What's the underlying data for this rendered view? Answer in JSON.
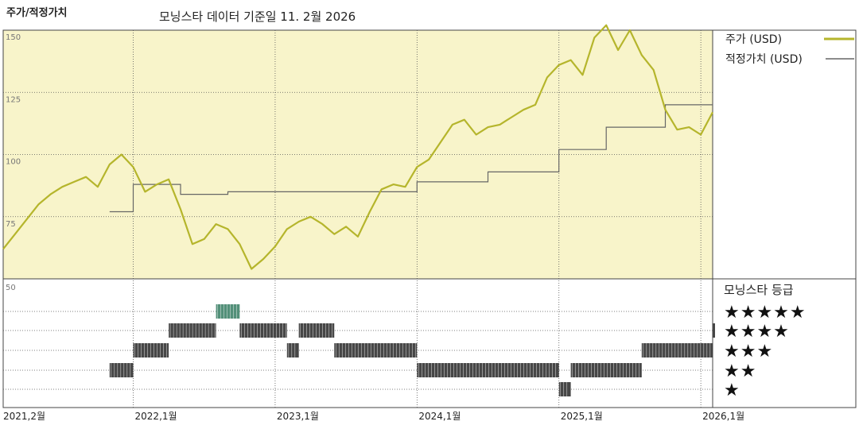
{
  "header": {
    "title": "주가/적정가치",
    "subtitle": "모닝스타 데이터 기준일 11. 2월 2026"
  },
  "chart_data": {
    "type": "line",
    "title": "주가/적정가치",
    "subtitle": "모닝스타 데이터 기준일 11. 2월 2026",
    "x_ticks": [
      "2021,2월",
      "2022,1월",
      "2023,1월",
      "2024,1월",
      "2025,1월",
      "2026,1월"
    ],
    "y_ticks": [
      150,
      125,
      100,
      75,
      50
    ],
    "ylim": [
      50,
      150
    ],
    "grid": true,
    "legend_position": "right",
    "series": [
      {
        "name": "주가 (USD)",
        "color": "#b5b52c",
        "points": [
          [
            "2021-02",
            62
          ],
          [
            "2021-03",
            68
          ],
          [
            "2021-04",
            74
          ],
          [
            "2021-05",
            80
          ],
          [
            "2021-06",
            84
          ],
          [
            "2021-07",
            87
          ],
          [
            "2021-08",
            89
          ],
          [
            "2021-09",
            91
          ],
          [
            "2021-10",
            87
          ],
          [
            "2021-11",
            96
          ],
          [
            "2021-12",
            100
          ],
          [
            "2022-01",
            95
          ],
          [
            "2022-02",
            85
          ],
          [
            "2022-03",
            88
          ],
          [
            "2022-04",
            90
          ],
          [
            "2022-05",
            78
          ],
          [
            "2022-06",
            64
          ],
          [
            "2022-07",
            66
          ],
          [
            "2022-08",
            72
          ],
          [
            "2022-09",
            70
          ],
          [
            "2022-10",
            64
          ],
          [
            "2022-11",
            54
          ],
          [
            "2022-12",
            58
          ],
          [
            "2023-01",
            63
          ],
          [
            "2023-02",
            70
          ],
          [
            "2023-03",
            73
          ],
          [
            "2023-04",
            75
          ],
          [
            "2023-05",
            72
          ],
          [
            "2023-06",
            68
          ],
          [
            "2023-07",
            71
          ],
          [
            "2023-08",
            67
          ],
          [
            "2023-09",
            77
          ],
          [
            "2023-10",
            86
          ],
          [
            "2023-11",
            88
          ],
          [
            "2023-12",
            87
          ],
          [
            "2024-01",
            95
          ],
          [
            "2024-02",
            98
          ],
          [
            "2024-03",
            105
          ],
          [
            "2024-04",
            112
          ],
          [
            "2024-05",
            114
          ],
          [
            "2024-06",
            108
          ],
          [
            "2024-07",
            111
          ],
          [
            "2024-08",
            112
          ],
          [
            "2024-09",
            115
          ],
          [
            "2024-10",
            118
          ],
          [
            "2024-11",
            120
          ],
          [
            "2024-12",
            131
          ],
          [
            "2025-01",
            136
          ],
          [
            "2025-02",
            138
          ],
          [
            "2025-03",
            132
          ],
          [
            "2025-04",
            147
          ],
          [
            "2025-05",
            152
          ],
          [
            "2025-06",
            142
          ],
          [
            "2025-07",
            150
          ],
          [
            "2025-08",
            140
          ],
          [
            "2025-09",
            134
          ],
          [
            "2025-10",
            118
          ],
          [
            "2025-11",
            110
          ],
          [
            "2025-12",
            111
          ],
          [
            "2026-01",
            108
          ],
          [
            "2026-02",
            117
          ]
        ]
      },
      {
        "name": "적정가치 (USD)",
        "color": "#666666",
        "points": [
          [
            "2021-11",
            77
          ],
          [
            "2022-01",
            77
          ],
          [
            "2022-01",
            88
          ],
          [
            "2022-05",
            88
          ],
          [
            "2022-05",
            84
          ],
          [
            "2022-09",
            84
          ],
          [
            "2022-09",
            85
          ],
          [
            "2024-01",
            85
          ],
          [
            "2024-01",
            89
          ],
          [
            "2024-07",
            89
          ],
          [
            "2024-07",
            93
          ],
          [
            "2025-01",
            93
          ],
          [
            "2025-01",
            102
          ],
          [
            "2025-05",
            102
          ],
          [
            "2025-05",
            111
          ],
          [
            "2025-10",
            111
          ],
          [
            "2025-10",
            120
          ],
          [
            "2026-02",
            120
          ]
        ]
      }
    ],
    "rating_panel": {
      "title": "모닝스타 등급",
      "rows": [
        "★★★★★",
        "★★★★",
        "★★★",
        "★★",
        "★"
      ],
      "rating_color": "#3d3d3d",
      "top_rating_color": "#4a8a72",
      "history": [
        {
          "from": "2021-11",
          "to": "2022-01",
          "stars": 2
        },
        {
          "from": "2022-01",
          "to": "2022-04",
          "stars": 3
        },
        {
          "from": "2022-04",
          "to": "2022-08",
          "stars": 4
        },
        {
          "from": "2022-08",
          "to": "2022-10",
          "stars": 5
        },
        {
          "from": "2022-10",
          "to": "2023-02",
          "stars": 4
        },
        {
          "from": "2023-02",
          "to": "2023-03",
          "stars": 3
        },
        {
          "from": "2023-03",
          "to": "2023-06",
          "stars": 4
        },
        {
          "from": "2023-06",
          "to": "2024-01",
          "stars": 3
        },
        {
          "from": "2024-01",
          "to": "2025-01",
          "stars": 2
        },
        {
          "from": "2025-01",
          "to": "2025-02",
          "stars": 1
        },
        {
          "from": "2025-02",
          "to": "2025-08",
          "stars": 2
        },
        {
          "from": "2025-08",
          "to": "2026-02",
          "stars": 3
        },
        {
          "from": "2026-02",
          "to": "2026-02",
          "stars": 4
        }
      ]
    }
  }
}
